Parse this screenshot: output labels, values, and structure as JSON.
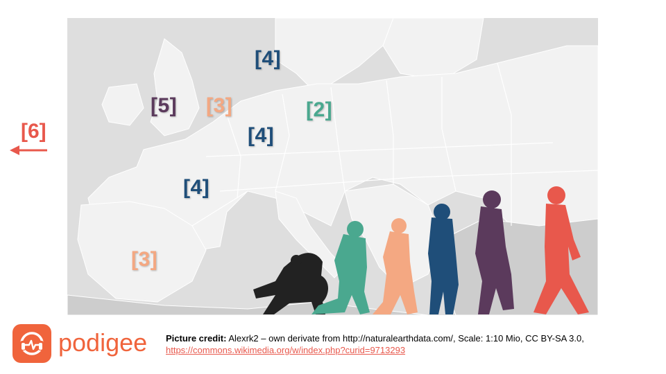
{
  "colors": {
    "sea": "#dedede",
    "land": "#f2f2f2",
    "land_dim": "#cdcdcd",
    "border": "#ffffff",
    "navy": "#1f4e79",
    "plum": "#5b3a5c",
    "salmon": "#f4a882",
    "teal": "#4aa88f",
    "red": "#e8584c",
    "brand": "#f0643c",
    "link": "#e8584c",
    "black": "#222222"
  },
  "map": {
    "labels": [
      {
        "id": "label-denmark",
        "text": "[4]",
        "color": "#1f4e79"
      },
      {
        "id": "label-britain",
        "text": "[5]",
        "color": "#5b3a5c"
      },
      {
        "id": "label-benelux",
        "text": "[3]",
        "color": "#f4a882"
      },
      {
        "id": "label-poland",
        "text": "[2]",
        "color": "#4aa88f"
      },
      {
        "id": "label-germany",
        "text": "[4]",
        "color": "#1f4e79"
      },
      {
        "id": "label-france",
        "text": "[4]",
        "color": "#1f4e79"
      },
      {
        "id": "label-spain",
        "text": "[3]",
        "color": "#f4a882"
      }
    ],
    "figures": [
      {
        "name": "chimpanzee-silhouette",
        "color": "#222222"
      },
      {
        "name": "early-hominid-silhouette",
        "color": "#4aa88f"
      },
      {
        "name": "australopith-silhouette",
        "color": "#f4a882"
      },
      {
        "name": "homo-erectus-silhouette",
        "color": "#1f4e79"
      },
      {
        "name": "neanderthal-silhouette",
        "color": "#5b3a5c"
      },
      {
        "name": "modern-human-silhouette",
        "color": "#e8584c"
      }
    ]
  },
  "side": {
    "label": "[6]",
    "icon": "arrow-left-icon"
  },
  "brand": {
    "name": "podigee",
    "icon": "podigee-logo-icon"
  },
  "credit": {
    "heading": "Picture credit:",
    "text": " Alexrk2 – own derivate from http://naturalearthdata.com/, Scale: 1:10 Mio, CC BY-SA 3.0,",
    "link": "https://commons.wikimedia.org/w/index.php?curid=9713293"
  }
}
